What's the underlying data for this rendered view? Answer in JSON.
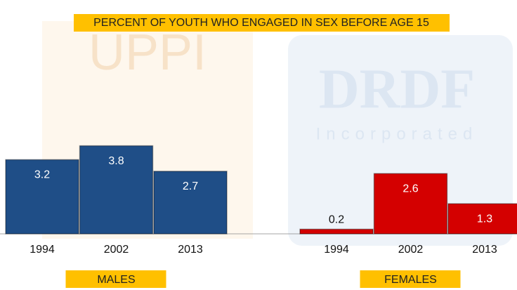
{
  "background_text": [
    "UPPI",
    "DRDF",
    "Incorporated"
  ],
  "chart_data": {
    "type": "bar",
    "title": "PERCENT OF YOUTH WHO ENGAGED IN SEX BEFORE AGE 15",
    "categories": [
      "1994",
      "2002",
      "2013"
    ],
    "series": [
      {
        "name": "MALES",
        "color": "#1f4e87",
        "values": [
          3.2,
          3.8,
          2.7
        ]
      },
      {
        "name": "FEMALES",
        "color": "#d40000",
        "values": [
          0.2,
          2.6,
          1.3
        ]
      }
    ],
    "ylim": [
      0,
      10
    ]
  }
}
